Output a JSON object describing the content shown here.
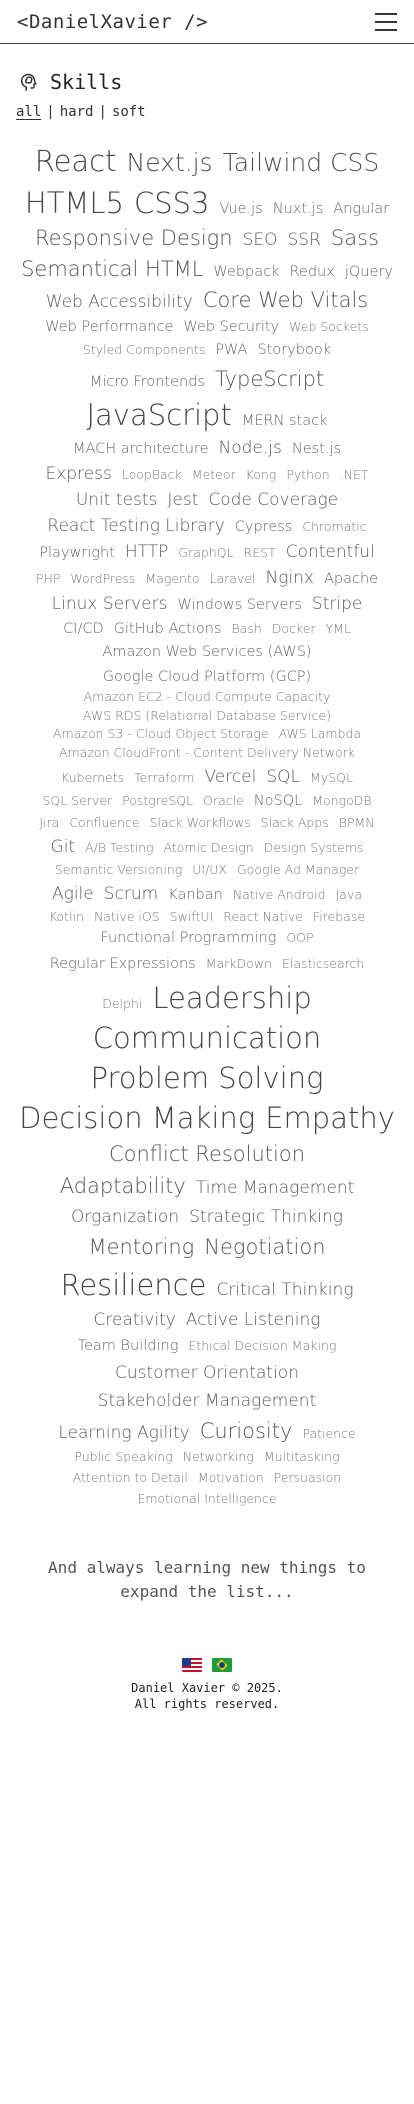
{
  "header": {
    "logo": "<DanielXavier />",
    "menu_icon": "hamburger-icon"
  },
  "skills": {
    "title": "Skills",
    "icon": "brain-icon"
  },
  "filters": [
    {
      "label": "all",
      "active": true
    },
    {
      "label": "hard",
      "active": false
    },
    {
      "label": "soft",
      "active": false
    }
  ],
  "tags": [
    [
      "React",
      "Next.js",
      "Tailwind CSS"
    ],
    [
      "HTML5",
      "CSS3",
      "Vue.js",
      "Nuxt.js",
      "Angular"
    ],
    [
      "Responsive Design",
      "SEO",
      "SSR",
      "Sass"
    ],
    [
      "Semantical HTML",
      "Webpack",
      "Redux",
      "jQuery"
    ],
    [
      "Web Accessibility",
      "Core Web Vitals"
    ],
    [
      "Web Performance",
      "Web Security",
      "Web Sockets"
    ],
    [
      "Styled Components",
      "PWA",
      "Storybook"
    ],
    [
      "Micro Frontends",
      "TypeScript"
    ],
    [
      "JavaScript",
      "MERN stack"
    ],
    [
      "MACH architecture",
      "Node.js",
      "Nest.js"
    ],
    [
      "Express",
      "LoopBack",
      "Meteor",
      "Kong",
      "Python",
      ".NET"
    ],
    [
      "Unit tests",
      "Jest",
      "Code Coverage"
    ],
    [
      "React Testing Library",
      "Cypress",
      "Chromatic"
    ],
    [
      "Playwright",
      "HTTP",
      "GraphQL",
      "REST",
      "Contentful"
    ],
    [
      "PHP",
      "WordPress",
      "Magento",
      "Laravel",
      "Nginx",
      "Apache"
    ],
    [
      "Linux Servers",
      "Windows Servers",
      "Stripe"
    ],
    [
      "CI/CD",
      "GitHub Actions",
      "Bash",
      "Docker",
      "YML"
    ],
    [
      "Amazon Web Services (AWS)"
    ],
    [
      "Google Cloud Platform (GCP)"
    ],
    [
      "Amazon EC2 - Cloud Compute Capacity"
    ],
    [
      "AWS RDS (Relational Database Service)"
    ],
    [
      "Amazon S3 - Cloud Object Storage",
      "AWS Lambda"
    ],
    [
      "Amazon CloudFront - Content Delivery Network"
    ],
    [
      "Kubernets",
      "Terraform",
      "Vercel",
      "SQL",
      "MySQL"
    ],
    [
      "SQL Server",
      "PostgreSQL",
      "Oracle",
      "NoSQL",
      "MongoDB"
    ],
    [
      "Jira",
      "Confluence",
      "Slack Workflows",
      "Slack Apps",
      "BPMN"
    ],
    [
      "Git",
      "A/B Testing",
      "Atomic Design",
      "Design Systems"
    ],
    [
      "Semantic Versioning",
      "UI/UX",
      "Google Ad Manager"
    ],
    [
      "Agile",
      "Scrum",
      "Kanban",
      "Native Android",
      "Java"
    ],
    [
      "Kotlin",
      "Native iOS",
      "SwiftUI",
      "React Native",
      "Firebase"
    ],
    [
      "Functional Programming",
      "OOP"
    ],
    [
      "Regular Expressions",
      "MarkDown",
      "Elasticsearch"
    ],
    [
      "Delphi",
      "Leadership"
    ],
    [
      "Communication"
    ],
    [
      "Problem Solving"
    ],
    [
      "Decision Making",
      "Empathy"
    ],
    [
      "Conflict Resolution"
    ],
    [
      "Adaptability",
      "Time Management"
    ],
    [
      "Organization",
      "Strategic Thinking"
    ],
    [
      "Mentoring",
      "Negotiation"
    ],
    [
      "Resilience",
      "Critical Thinking"
    ],
    [
      "Creativity",
      "Active Listening"
    ],
    [
      "Team Building",
      "Ethical Decision Making"
    ],
    [
      "Customer Orientation"
    ],
    [
      "Stakeholder Management"
    ],
    [
      "Learning Agility",
      "Curiosity",
      "Patience"
    ],
    [
      "Public Speaking",
      "Networking",
      "Multitasking"
    ],
    [
      "Attention to Detail",
      "Motivation",
      "Persuasion"
    ],
    [
      "Emotional Intelligence"
    ]
  ],
  "note": "And always learning new things to expand the list...",
  "flags": [
    {
      "name": "United States",
      "icon": "us-flag-icon"
    },
    {
      "name": "Brazil",
      "icon": "brazil-flag-icon"
    }
  ],
  "footer": {
    "line1": "Daniel Xavier © 2025.",
    "line2": "All rights reserved."
  }
}
